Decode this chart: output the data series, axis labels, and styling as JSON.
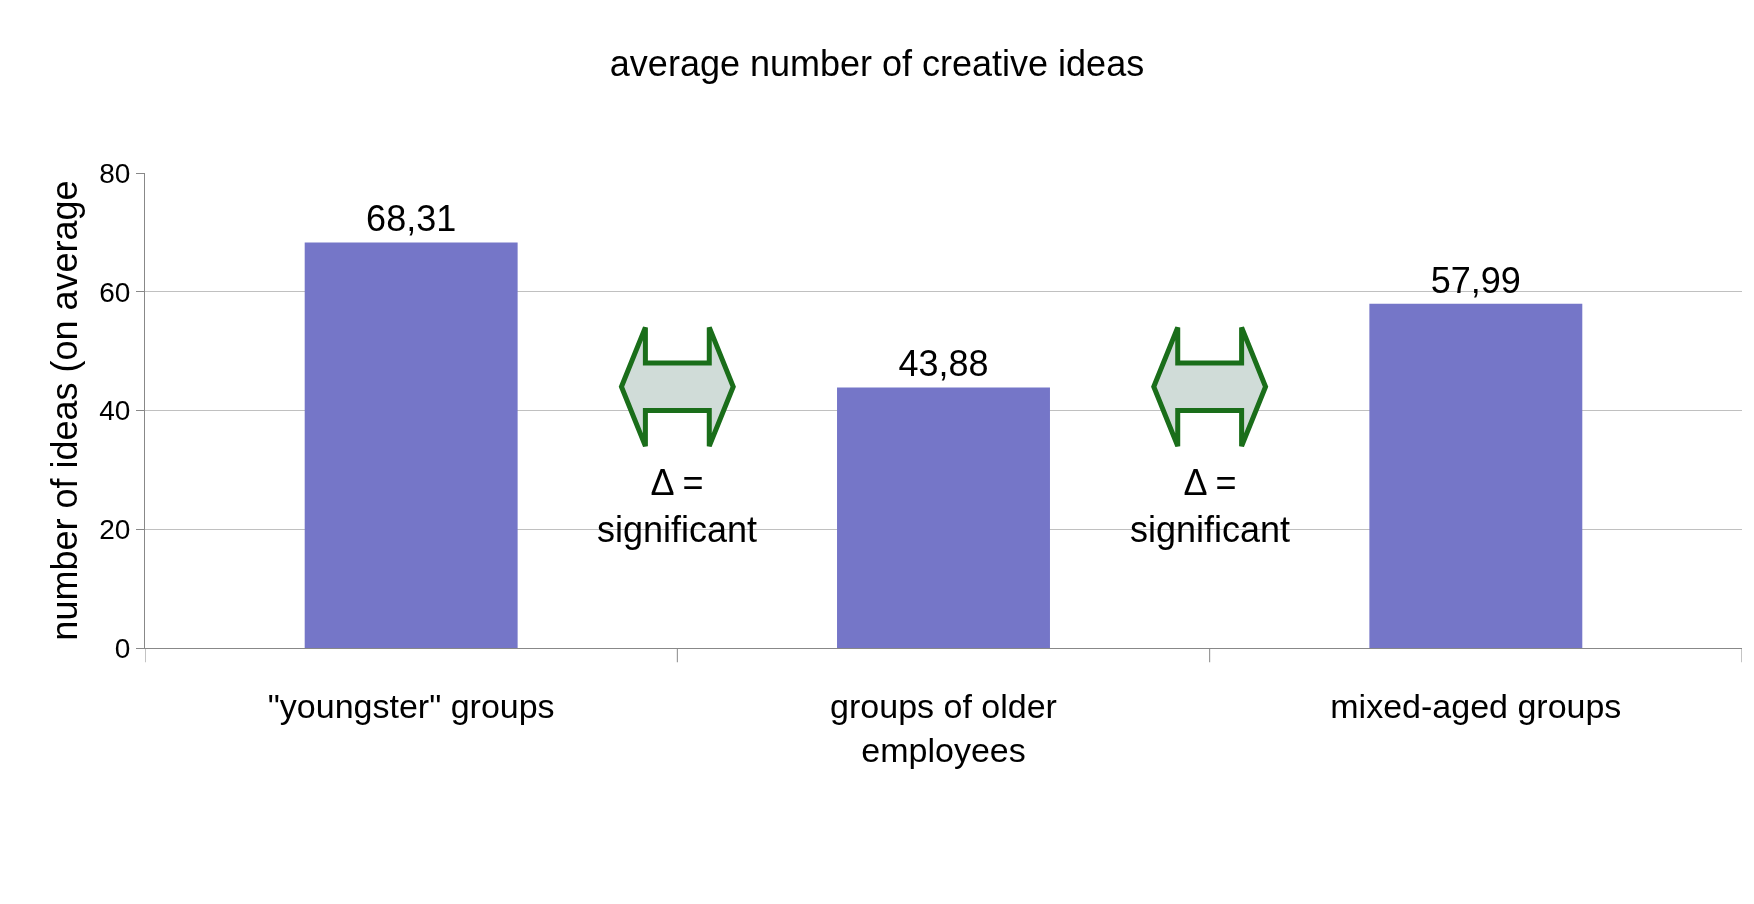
{
  "chart_data": {
    "type": "bar",
    "title": "average number of creative ideas",
    "ylabel": "number of ideas (on average",
    "categories": [
      "\"youngster\" groups",
      "groups of older\nemployees",
      "mixed-aged groups"
    ],
    "values": [
      68.31,
      43.88,
      57.99
    ],
    "value_labels": [
      "68,31",
      "43,88",
      "57,99"
    ],
    "color": "#7576c8",
    "ylim": [
      0,
      80
    ],
    "yticks": [
      0,
      20,
      40,
      60,
      80
    ],
    "grid": "y",
    "legend": false,
    "annotations": [
      "Δ =\nsignificant",
      "Δ =\nsignificant"
    ]
  }
}
